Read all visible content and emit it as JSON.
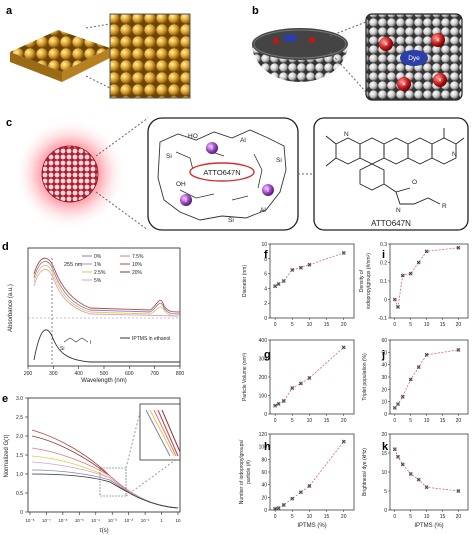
{
  "panels": {
    "a": "a",
    "b": "b",
    "c": "c",
    "d": "d",
    "e": "e",
    "f": "f",
    "g": "g",
    "h": "h",
    "i": "i",
    "j": "j",
    "k": "k"
  },
  "panel_b": {
    "dye_label": "Dye"
  },
  "panel_c": {
    "dye_box_label": "ATTO647N",
    "structure_caption": "ATTO647N",
    "iodine_label": "I",
    "chain_labels": [
      "HO",
      "O",
      "Si",
      "Al",
      "OH",
      "N",
      "R",
      "O"
    ]
  },
  "chart_data": [
    {
      "id": "d",
      "type": "line",
      "xlabel": "Wavelength (nm)",
      "ylabel": "Absorbance (a.u.)",
      "xlim": [
        200,
        800
      ],
      "x_ticks": [
        "200",
        "300",
        "400",
        "500",
        "600",
        "700",
        "800"
      ],
      "annotation": "255 nm",
      "inset_label": "IPTMS in ethanol",
      "legend": [
        "0%",
        "1%",
        "2.5%",
        "5%",
        "7.5%",
        "10%",
        "20%"
      ],
      "colors": [
        "#7f7fbf",
        "#b58fd0",
        "#e0c84a",
        "#d9a0c0",
        "#e07b7b",
        "#c04040",
        "#8b3a3a"
      ]
    },
    {
      "id": "e",
      "type": "line",
      "xlabel": "τ(s)",
      "ylabel": "Normalized G(τ)",
      "ylim": [
        0,
        3
      ],
      "y_ticks": [
        "0",
        "0.5",
        "1.0",
        "1.5",
        "2.0",
        "2.5",
        "3.0"
      ],
      "x_ticks": [
        "10⁻⁸",
        "10⁻⁷",
        "10⁻⁶",
        "10⁻⁵",
        "10⁻⁴",
        "10⁻³",
        "10⁻²",
        "10⁻¹",
        "1",
        "10"
      ]
    },
    {
      "id": "f",
      "type": "scatter",
      "xlabel": "",
      "ylabel": "Diameter (nm)",
      "x_ticks": [
        "0",
        "5",
        "10",
        "15",
        "20"
      ],
      "ylim": [
        0,
        10
      ],
      "y_ticks": [
        "0",
        "2",
        "4",
        "6",
        "8",
        "10"
      ],
      "x": [
        0,
        1,
        2.5,
        5,
        7.5,
        10,
        20
      ],
      "y": [
        4.3,
        4.6,
        5.0,
        6.5,
        6.8,
        7.2,
        8.8
      ]
    },
    {
      "id": "g",
      "type": "scatter",
      "xlabel": "",
      "ylabel": "Particle Volume (nm³)",
      "x_ticks": [
        "0",
        "5",
        "10",
        "15",
        "20"
      ],
      "ylim": [
        0,
        400
      ],
      "y_ticks": [
        "0",
        "100",
        "200",
        "300",
        "400"
      ],
      "x": [
        0,
        1,
        2.5,
        5,
        7.5,
        10,
        20
      ],
      "y": [
        45,
        55,
        70,
        140,
        165,
        195,
        360
      ]
    },
    {
      "id": "h",
      "type": "scatter",
      "xlabel": "IPTMS (%)",
      "ylabel": "Number of iodopropylgroups/ particle (#)",
      "x_ticks": [
        "0",
        "5",
        "10",
        "15",
        "20"
      ],
      "ylim": [
        0,
        120
      ],
      "y_ticks": [
        "0",
        "20",
        "40",
        "60",
        "80",
        "100",
        "120"
      ],
      "x": [
        0,
        1,
        2.5,
        5,
        7.5,
        10,
        20
      ],
      "y": [
        2,
        3,
        8,
        18,
        28,
        38,
        108
      ]
    },
    {
      "id": "i",
      "type": "scatter",
      "xlabel": "",
      "ylabel": "Density of iodopropylgroups (#/nm²)",
      "x_ticks": [
        "0",
        "5",
        "10",
        "15",
        "20"
      ],
      "ylim": [
        -0.1,
        0.3
      ],
      "y_ticks": [
        "-0.1",
        "0",
        "0.1",
        "0.2",
        "0.3"
      ],
      "x": [
        0,
        1,
        2.5,
        5,
        7.5,
        10,
        20
      ],
      "y": [
        0.0,
        -0.04,
        0.13,
        0.14,
        0.2,
        0.26,
        0.28
      ]
    },
    {
      "id": "j",
      "type": "scatter",
      "xlabel": "",
      "ylabel": "Triplet population (%)",
      "x_ticks": [
        "0",
        "5",
        "10",
        "15",
        "20"
      ],
      "ylim": [
        0,
        60
      ],
      "y_ticks": [
        "0",
        "10",
        "20",
        "30",
        "40",
        "50",
        "60"
      ],
      "x": [
        0,
        1,
        2.5,
        5,
        7.5,
        10,
        20
      ],
      "y": [
        5,
        8,
        14,
        28,
        38,
        48,
        52
      ]
    },
    {
      "id": "k",
      "type": "scatter",
      "xlabel": "IPTMS (%)",
      "ylabel": "Brightness/ dye (kHz)",
      "x_ticks": [
        "0",
        "5",
        "10",
        "15",
        "20"
      ],
      "ylim": [
        0,
        20
      ],
      "y_ticks": [
        "0",
        "5",
        "10",
        "15",
        "20"
      ],
      "x": [
        0,
        1,
        2.5,
        5,
        7.5,
        10,
        20
      ],
      "y": [
        16,
        14,
        12,
        9.5,
        8,
        6,
        5
      ]
    }
  ]
}
